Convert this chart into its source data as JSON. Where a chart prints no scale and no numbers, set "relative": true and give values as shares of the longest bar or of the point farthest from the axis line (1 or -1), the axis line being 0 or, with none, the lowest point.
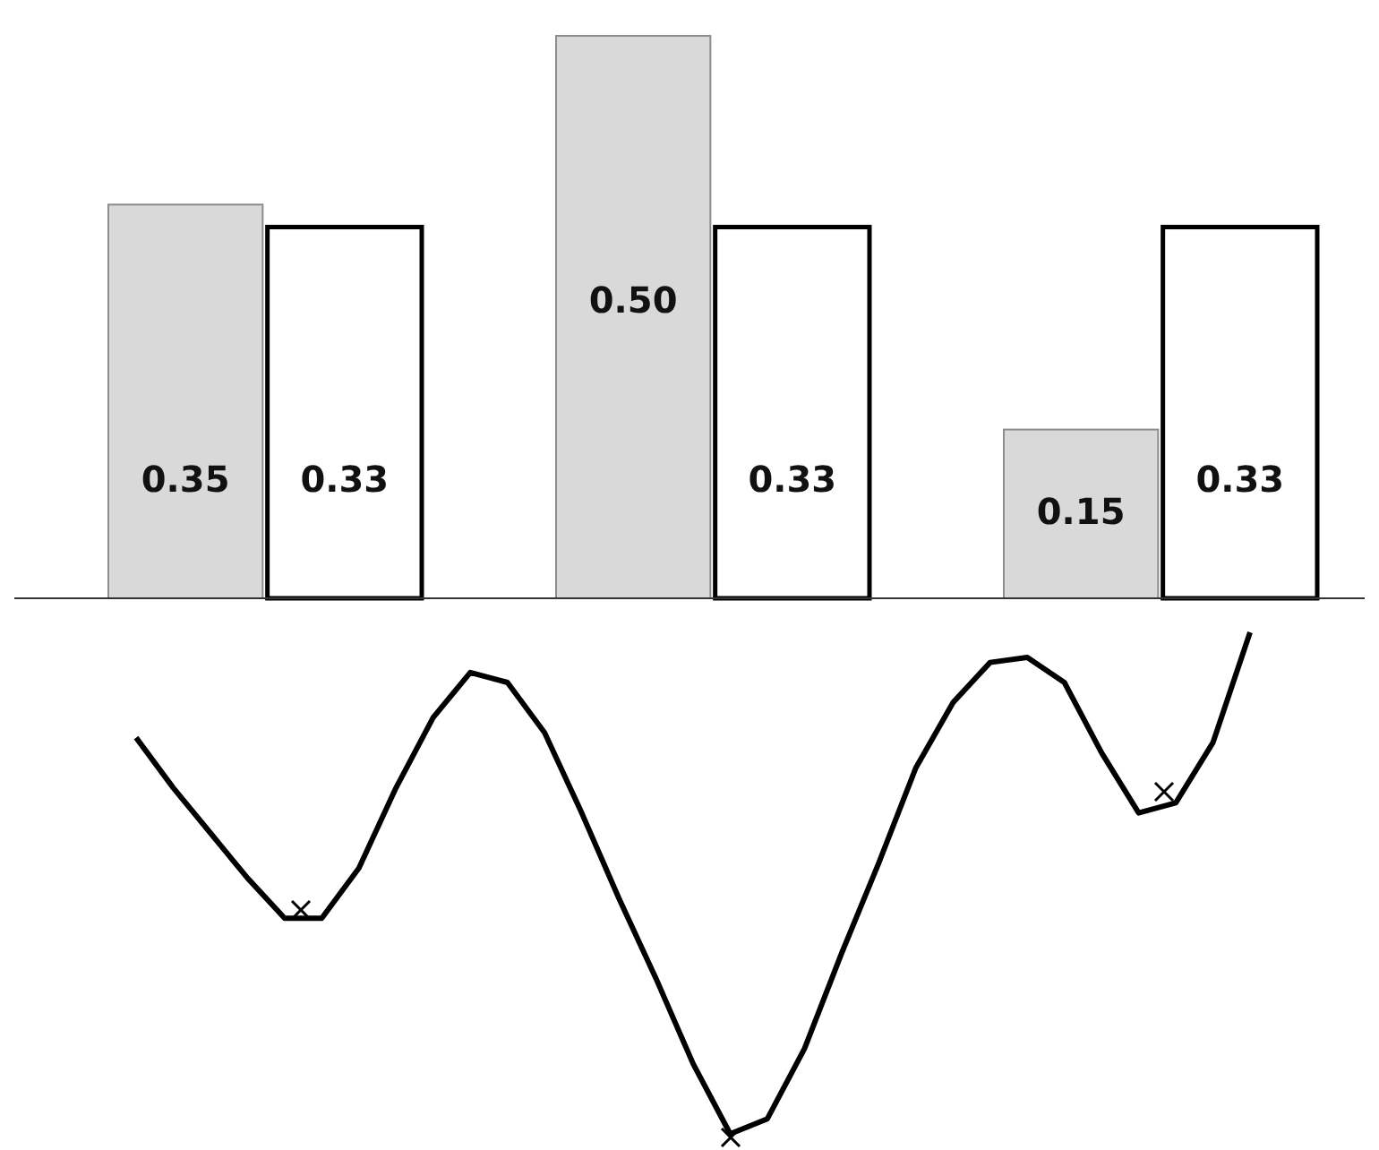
{
  "chart_data": [
    {
      "type": "bar",
      "categories": [
        null,
        null,
        null
      ],
      "series": [
        {
          "color": "#d9d9d9",
          "values": [
            0.35,
            0.5,
            0.15
          ],
          "value_labels": [
            "0.35",
            "0.50",
            "0.15"
          ]
        },
        {
          "color": "#ffffff",
          "values": [
            0.33,
            0.33,
            0.33
          ],
          "value_labels": [
            "0.33",
            "0.33",
            "0.33"
          ]
        }
      ]
    },
    {
      "type": "line",
      "relative": true,
      "categories": [
        null,
        null,
        null,
        null,
        null,
        null,
        null,
        null,
        null,
        null,
        null,
        null,
        null,
        null,
        null,
        null,
        null,
        null,
        null,
        null,
        null,
        null,
        null,
        null,
        null,
        null,
        null,
        null,
        null,
        null,
        null
      ],
      "series": [
        {
          "color": "#000000",
          "values": [
            0.79,
            0.69,
            0.6,
            0.51,
            0.43,
            0.43,
            0.53,
            0.69,
            0.83,
            0.92,
            0.9,
            0.8,
            0.64,
            0.47,
            0.31,
            0.14,
            0,
            0.03,
            0.17,
            0.36,
            0.54,
            0.73,
            0.86,
            0.94,
            0.95,
            0.9,
            0.76,
            0.64,
            0.66,
            0.78,
            1
          ]
        }
      ]
    }
  ]
}
